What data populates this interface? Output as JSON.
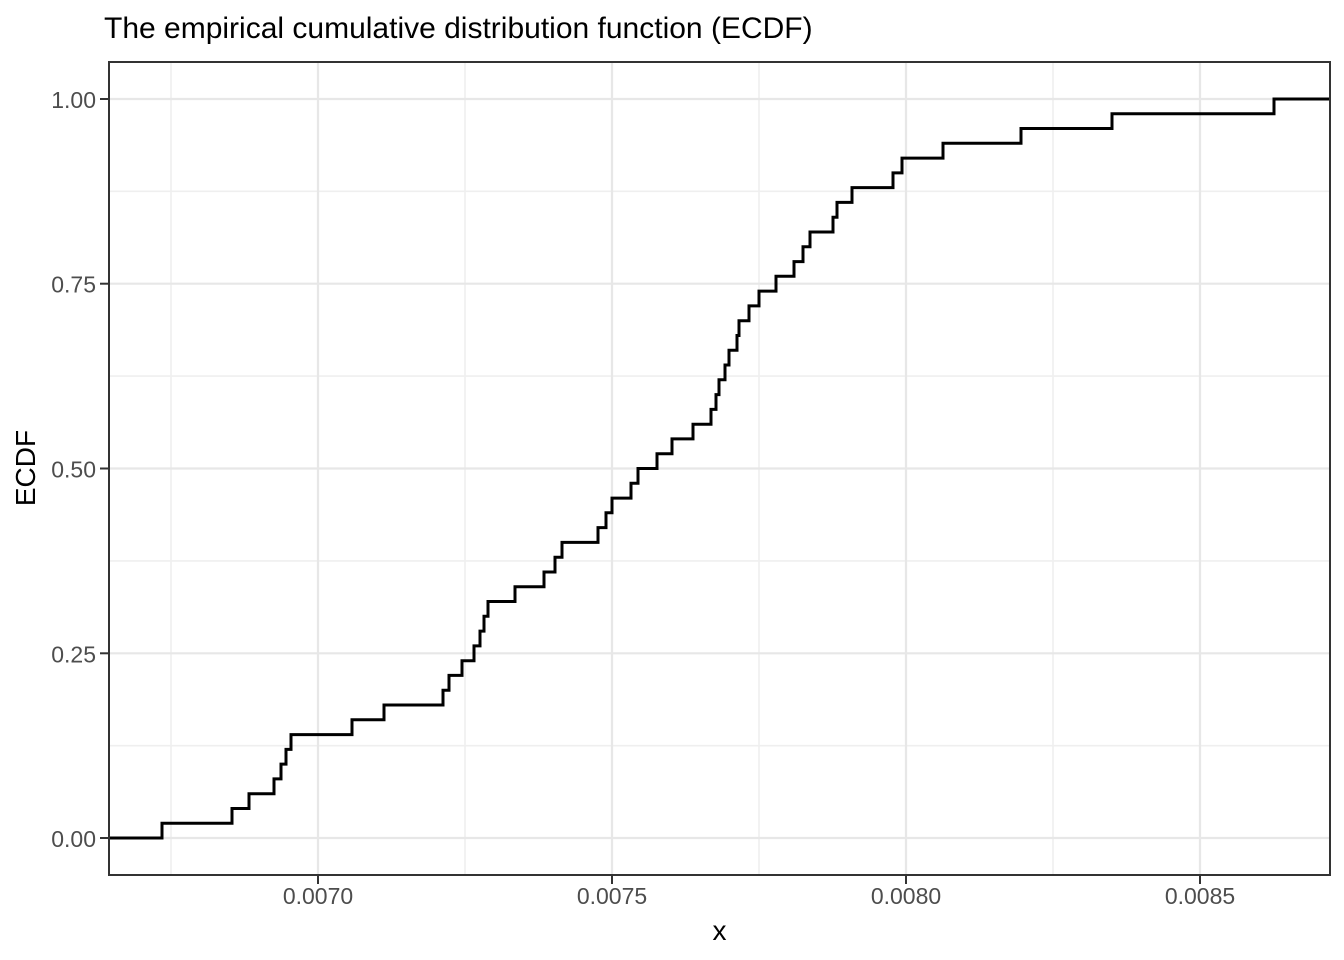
{
  "chart": {
    "title": "The empirical cumulative distribution function (ECDF)",
    "xlabel": "x",
    "ylabel": "ECDF"
  },
  "chart_data": {
    "type": "line",
    "subtype": "ecdf-step",
    "title": "The empirical cumulative distribution function (ECDF)",
    "xlabel": "x",
    "ylabel": "ECDF",
    "n": 50,
    "x": [
      0.0067347,
      0.0068537,
      0.0068827,
      0.0069252,
      0.0069371,
      0.0069456,
      0.0069541,
      0.0070578,
      0.0071122,
      0.0072126,
      0.0072228,
      0.0072449,
      0.0072653,
      0.0072755,
      0.0072823,
      0.0072891,
      0.007335,
      0.0073844,
      0.0074031,
      0.007415,
      0.0074762,
      0.0074898,
      0.0075,
      0.0075323,
      0.0075442,
      0.0075765,
      0.007602,
      0.0076378,
      0.0076684,
      0.0076769,
      0.007682,
      0.0076922,
      0.007699,
      0.0077126,
      0.007716,
      0.007733,
      0.00775,
      0.0077789,
      0.0078095,
      0.0078248,
      0.0078367,
      0.0078759,
      0.0078827,
      0.0079082,
      0.0079779,
      0.0079932,
      0.0080629,
      0.0081956,
      0.0083503,
      0.0086259
    ],
    "y": [
      0.02,
      0.04,
      0.06,
      0.08,
      0.1,
      0.12,
      0.14,
      0.16,
      0.18,
      0.2,
      0.22,
      0.24,
      0.26,
      0.28,
      0.3,
      0.32,
      0.34,
      0.36,
      0.38,
      0.4,
      0.42,
      0.44,
      0.46,
      0.48,
      0.5,
      0.52,
      0.54,
      0.56,
      0.58,
      0.6,
      0.62,
      0.64,
      0.66,
      0.68,
      0.7,
      0.72,
      0.74,
      0.76,
      0.78,
      0.8,
      0.82,
      0.84,
      0.86,
      0.88,
      0.9,
      0.92,
      0.94,
      0.96,
      0.98,
      1.0
    ],
    "xlim": [
      0.0066446,
      0.0087211
    ],
    "ylim": [
      -0.05,
      1.05
    ],
    "x_major_ticks": {
      "values": [
        0.007,
        0.0075,
        0.008,
        0.0085
      ],
      "labels": [
        "0.0070",
        "0.0075",
        "0.0080",
        "0.0085"
      ]
    },
    "x_minor_ticks": [
      0.00675,
      0.00725,
      0.00775,
      0.00825
    ],
    "y_major_ticks": {
      "values": [
        0.0,
        0.25,
        0.5,
        0.75,
        1.0
      ],
      "labels": [
        "0.00",
        "0.25",
        "0.50",
        "0.75",
        "1.00"
      ]
    },
    "y_minor_ticks": [
      0.125,
      0.375,
      0.625,
      0.875
    ],
    "grid": true,
    "legend": "none",
    "colors": {
      "line": "#000000",
      "grid_major": "#E7E7E7",
      "grid_minor": "#EFEFEF",
      "panel_border": "#333333",
      "tick_mark": "#333333",
      "tick_label": "#4D4D4D",
      "title": "#000000",
      "axis_label": "#000000",
      "background": "#FFFFFF"
    }
  }
}
